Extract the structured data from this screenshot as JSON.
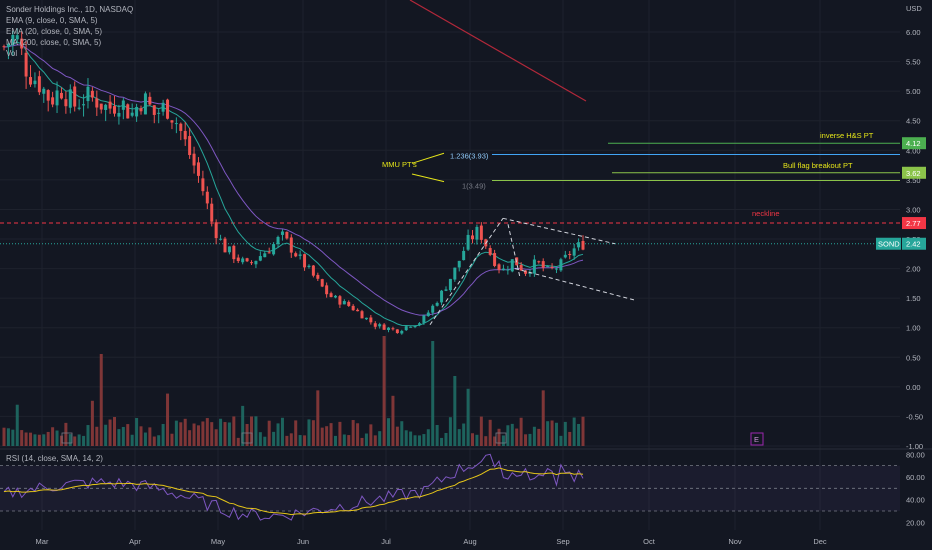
{
  "legend": {
    "title": "Sonder Holdings Inc., 1D, NASDAQ",
    "ema1": "EMA (9, close, 0, SMA, 5)",
    "ema2": "EMA (20, close, 0, SMA, 5)",
    "ma": "MA (200, close, 0, SMA, 5)",
    "vol": "Vol"
  },
  "rsi_legend": "RSI (14, close, SMA, 14, 2)",
  "colors": {
    "up": "#26a69a",
    "down": "#ef5350",
    "ema_fast": "#26a69a",
    "ema_slow": "#7e57c2",
    "rsi": "#7e57c2",
    "rsi_ma": "#e6c619",
    "annotation": "#e6e619"
  },
  "chart_data": {
    "type": "candlestick",
    "currency_label": "USD",
    "price_axis": {
      "ticks": [
        "6.00",
        "5.50",
        "5.00",
        "4.50",
        "4.00",
        "3.50",
        "3.00",
        "2.50",
        "2.00",
        "1.50",
        "1.00",
        "0.50",
        "0.00",
        "-0.50",
        "-1.00"
      ],
      "ylim": [
        -1.0,
        6.3
      ]
    },
    "x_axis": {
      "ticks": [
        "Mar",
        "Apr",
        "May",
        "Jun",
        "Jul",
        "Aug",
        "Sep",
        "Oct",
        "Nov",
        "Dec"
      ]
    },
    "price_badges": [
      {
        "label": "",
        "value": "4.12",
        "color": "#4caf50"
      },
      {
        "label": "",
        "value": "3.62",
        "color": "#8bc34a"
      },
      {
        "label": "",
        "value": "2.77",
        "color": "#f23645"
      },
      {
        "label": "SOND",
        "value": "2.42",
        "color": "#26a69a"
      }
    ],
    "annotations": {
      "inverse_hs": "inverse H&S PT",
      "bull_flag": "Bull flag breakout PT",
      "neckline": "neckline",
      "mmu": "MMU PT's",
      "fib1": "1.236(3.93)",
      "fib2": "1(3.49)",
      "event_marker": "E"
    },
    "levels": {
      "inverse_hs": 4.12,
      "fib_1236": 3.93,
      "bull_flag": 3.62,
      "fib_1": 3.49,
      "neckline": 2.77,
      "last": 2.42
    },
    "close_path": [
      [
        "Mar",
        5.75
      ],
      [
        "Mar",
        5.95
      ],
      [
        "Mar",
        5.35
      ],
      [
        "Mar",
        5.15
      ],
      [
        "Mar",
        4.85
      ],
      [
        "Mar",
        5.05
      ],
      [
        "Mar",
        4.75
      ],
      [
        "Mar",
        4.9
      ],
      [
        "Apr",
        4.85
      ],
      [
        "Apr",
        4.7
      ],
      [
        "Apr",
        4.85
      ],
      [
        "Apr",
        4.6
      ],
      [
        "Apr",
        4.9
      ],
      [
        "Apr",
        4.6
      ],
      [
        "Apr",
        4.75
      ],
      [
        "May",
        4.45
      ],
      [
        "May",
        3.95
      ],
      [
        "May",
        3.45
      ],
      [
        "May",
        2.75
      ],
      [
        "May",
        2.35
      ],
      [
        "May",
        2.2
      ],
      [
        "May",
        2.05
      ],
      [
        "May",
        2.2
      ],
      [
        "May",
        2.35
      ],
      [
        "Jun",
        2.55
      ],
      [
        "Jun",
        2.3
      ],
      [
        "Jun",
        2.05
      ],
      [
        "Jun",
        1.8
      ],
      [
        "Jun",
        1.55
      ],
      [
        "Jun",
        1.45
      ],
      [
        "Jun",
        1.35
      ],
      [
        "Jun",
        1.2
      ],
      [
        "Jul",
        1.05
      ],
      [
        "Jul",
        1.0
      ],
      [
        "Jul",
        0.95
      ],
      [
        "Jul",
        1.05
      ],
      [
        "Jul",
        1.1
      ],
      [
        "Jul",
        1.35
      ],
      [
        "Jul",
        1.65
      ],
      [
        "Aug",
        2.0
      ],
      [
        "Aug",
        2.45
      ],
      [
        "Aug",
        2.65
      ],
      [
        "Aug",
        2.25
      ],
      [
        "Aug",
        1.95
      ],
      [
        "Aug",
        2.15
      ],
      [
        "Aug",
        1.95
      ],
      [
        "Aug",
        2.1
      ],
      [
        "Sep",
        1.95
      ],
      [
        "Sep",
        2.05
      ],
      [
        "Sep",
        2.3
      ],
      [
        "Sep",
        2.42
      ]
    ],
    "rsi_axis": {
      "ticks": [
        "80.00",
        "60.00",
        "40.00",
        "20.00"
      ],
      "ylim": [
        15,
        82
      ],
      "band": [
        30,
        70
      ]
    }
  }
}
